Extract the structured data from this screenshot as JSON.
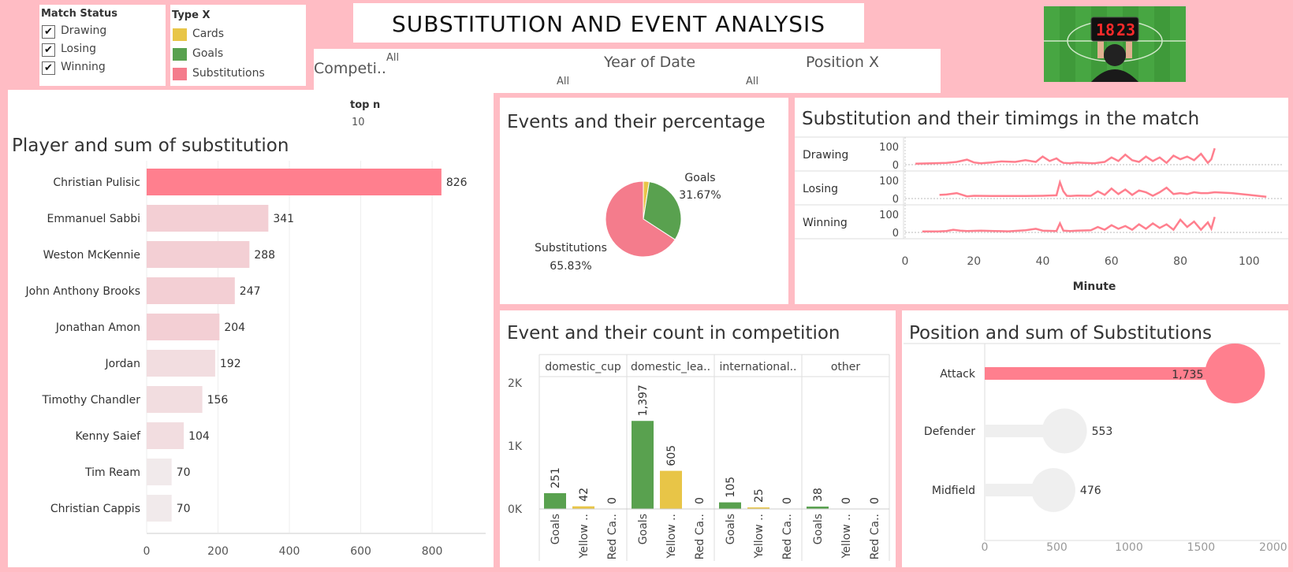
{
  "title": "SUBSTITUTION AND EVENT ANALYSIS",
  "match_status": {
    "label": "Match Status",
    "items": [
      "Drawing",
      "Losing",
      "Winning"
    ]
  },
  "type_legend": {
    "label": "Type X",
    "items": [
      {
        "name": "Cards",
        "color": "#e8c547"
      },
      {
        "name": "Goals",
        "color": "#59a14f"
      },
      {
        "name": "Substitutions",
        "color": "#f47c8c"
      }
    ]
  },
  "filters": {
    "competition": {
      "label": "Competi..",
      "value": "All"
    },
    "year": {
      "label": "Year of Date",
      "value": "All"
    },
    "position": {
      "label": "Position X",
      "value": "All"
    },
    "extra_value": "All"
  },
  "scoreboard": {
    "digits": "18",
    "digits2": "23"
  },
  "top_n": {
    "label": "top n",
    "value": "10"
  },
  "colors": {
    "accent": "#ff7f8e",
    "light_bar": "#f5d5d9",
    "goals": "#59a14f",
    "cards": "#e8c547",
    "subs": "#f47c8c",
    "grey": "#efefef"
  },
  "chart_data": [
    {
      "type": "bar",
      "title": "Player and sum of substitution",
      "categories": [
        "Christian Pulisic",
        "Emmanuel Sabbi",
        "Weston McKennie",
        "John Anthony Brooks",
        "Jonathan Amon",
        "Jordan",
        "Timothy Chandler",
        "Kenny Saief",
        "Tim Ream",
        "Christian Cappis"
      ],
      "values": [
        826,
        341,
        288,
        247,
        204,
        192,
        156,
        104,
        70,
        70
      ],
      "xlim": [
        0,
        950
      ],
      "xticks": [
        0,
        200,
        400,
        600,
        800
      ],
      "orientation": "horizontal"
    },
    {
      "type": "pie",
      "title": "Events and their percentage",
      "slices": [
        {
          "name": "Goals",
          "value": 31.67,
          "label": "31.67%"
        },
        {
          "name": "Substitutions",
          "value": 65.83,
          "label": "65.83%"
        },
        {
          "name": "Cards",
          "value": 2.5
        }
      ]
    },
    {
      "type": "line",
      "title": "Substitution and their timimgs in the match",
      "xlabel": "Minute",
      "xlim": [
        0,
        110
      ],
      "xticks": [
        0,
        20,
        40,
        60,
        80,
        100
      ],
      "yticks": [
        0,
        100
      ],
      "rows": [
        {
          "name": "Drawing",
          "x": [
            3,
            8,
            12,
            15,
            18,
            20,
            22,
            25,
            28,
            32,
            35,
            38,
            40,
            42,
            44,
            45,
            46,
            48,
            50,
            52,
            55,
            58,
            60,
            62,
            64,
            66,
            68,
            70,
            72,
            74,
            76,
            78,
            80,
            82,
            84,
            86,
            88,
            89,
            90
          ],
          "y": [
            5,
            8,
            10,
            15,
            28,
            12,
            8,
            12,
            18,
            15,
            25,
            15,
            45,
            20,
            35,
            20,
            10,
            8,
            12,
            10,
            8,
            15,
            40,
            20,
            55,
            25,
            15,
            45,
            20,
            40,
            10,
            50,
            30,
            45,
            25,
            60,
            10,
            30,
            90
          ]
        },
        {
          "name": "Losing",
          "x": [
            10,
            12,
            15,
            18,
            20,
            25,
            30,
            35,
            40,
            44,
            45,
            46,
            47,
            48,
            50,
            54,
            56,
            58,
            60,
            62,
            64,
            66,
            68,
            70,
            72,
            74,
            76,
            78,
            80,
            82,
            84,
            86,
            88,
            90,
            95,
            100,
            105
          ],
          "y": [
            20,
            22,
            30,
            12,
            15,
            14,
            14,
            14,
            15,
            18,
            90,
            40,
            15,
            14,
            16,
            15,
            40,
            20,
            55,
            25,
            50,
            20,
            45,
            35,
            15,
            35,
            60,
            25,
            30,
            25,
            35,
            30,
            30,
            35,
            30,
            20,
            10
          ]
        },
        {
          "name": "Winning",
          "x": [
            5,
            10,
            12,
            14,
            16,
            18,
            22,
            26,
            30,
            35,
            38,
            40,
            44,
            45,
            46,
            48,
            50,
            54,
            56,
            58,
            60,
            62,
            64,
            66,
            68,
            70,
            72,
            74,
            76,
            78,
            80,
            82,
            84,
            86,
            88,
            89,
            90
          ],
          "y": [
            5,
            6,
            8,
            15,
            10,
            8,
            10,
            8,
            6,
            12,
            20,
            10,
            8,
            50,
            10,
            8,
            10,
            12,
            30,
            15,
            40,
            20,
            35,
            15,
            45,
            20,
            50,
            25,
            45,
            15,
            70,
            30,
            60,
            15,
            55,
            20,
            85
          ]
        }
      ]
    },
    {
      "type": "bar",
      "title": "Event and their count in competition",
      "panels": [
        "domestic_cup",
        "domestic_lea..",
        "international..",
        "other"
      ],
      "categories": [
        "Goals",
        "Yellow ..",
        "Red Ca.."
      ],
      "values": [
        [
          251,
          42,
          0
        ],
        [
          1397,
          605,
          0
        ],
        [
          105,
          25,
          0
        ],
        [
          38,
          0,
          0
        ]
      ],
      "value_labels": [
        [
          "251",
          "42",
          "0"
        ],
        [
          "1,397",
          "605",
          "0"
        ],
        [
          "105",
          "25",
          "0"
        ],
        [
          "38",
          "0",
          "0"
        ]
      ],
      "ylim": [
        0,
        2100
      ],
      "yticks": [
        0,
        1000,
        2000
      ],
      "ytick_labels": [
        "0K",
        "1K",
        "2K"
      ]
    },
    {
      "type": "bar",
      "title": "Position and sum of Substitutions",
      "categories": [
        "Attack",
        "Defender",
        "Midfield"
      ],
      "values": [
        1735,
        553,
        476
      ],
      "value_labels": [
        "1,735",
        "553",
        "476"
      ],
      "xlim": [
        0,
        2050
      ],
      "xticks": [
        0,
        500,
        1000,
        1500,
        2000
      ]
    }
  ]
}
